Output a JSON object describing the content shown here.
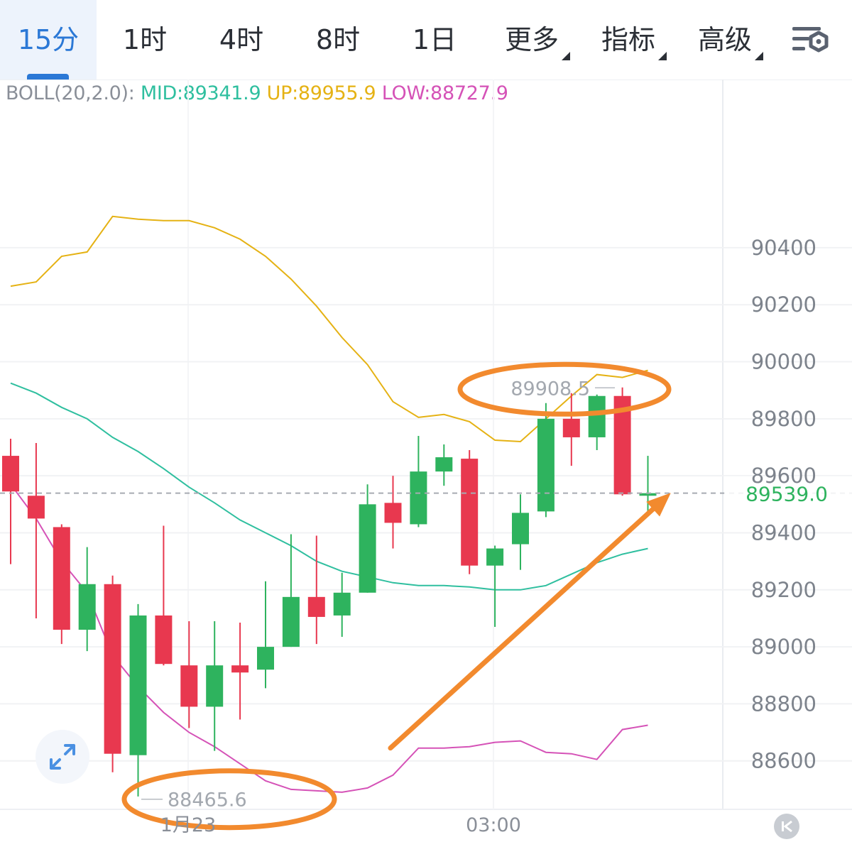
{
  "tabs": [
    {
      "label": "15分",
      "active": true
    },
    {
      "label": "1时"
    },
    {
      "label": "4时"
    },
    {
      "label": "8时"
    },
    {
      "label": "1日"
    },
    {
      "label": "更多",
      "dropdown": true
    },
    {
      "label": "指标",
      "dropdown": true
    },
    {
      "label": "高级",
      "dropdown": true
    }
  ],
  "settings_icon": "chart-settings-icon",
  "boll": {
    "label": "BOLL(20,2.0):",
    "mid": "MID:89341.9",
    "up": "UP:89955.9",
    "low": "LOW:88727.9"
  },
  "colors": {
    "up_candle": "#2eb35e",
    "down_candle": "#e8384f",
    "mid_line": "#2fbf9f",
    "upper_band": "#e5b214",
    "lower_band": "#d552b7",
    "annotation": "#f28a2e",
    "active_tab": "#2b78d6",
    "current_price": "#2eb35e"
  },
  "chart_data": {
    "type": "candlestick",
    "y_ticks": [
      "90400",
      "90200",
      "90000",
      "89800",
      "89600",
      "89400",
      "89200",
      "89000",
      "88800",
      "88600"
    ],
    "ylim": [
      88430,
      90990
    ],
    "x_labels": [
      "1月23",
      "03:00"
    ],
    "current_price": "89539.0",
    "current_price_value": 89539.0,
    "high_marker": {
      "label": "89908.5",
      "value": 89908.5
    },
    "low_marker": {
      "label": "88465.6",
      "value": 88465.6
    },
    "candles": [
      {
        "x": 0,
        "open": 89670,
        "high": 89730,
        "low": 89290,
        "close": 89545
      },
      {
        "x": 1,
        "open": 89530,
        "high": 89715,
        "low": 89100,
        "close": 89450
      },
      {
        "x": 2,
        "open": 89420,
        "high": 89430,
        "low": 89010,
        "close": 89060
      },
      {
        "x": 3,
        "open": 89060,
        "high": 89350,
        "low": 88985,
        "close": 89220
      },
      {
        "x": 4,
        "open": 89220,
        "high": 89250,
        "low": 88560,
        "close": 88625
      },
      {
        "x": 5,
        "open": 88620,
        "high": 89150,
        "low": 88475,
        "close": 89110
      },
      {
        "x": 6,
        "open": 89110,
        "high": 89425,
        "low": 88935,
        "close": 88940
      },
      {
        "x": 7,
        "open": 88935,
        "high": 89090,
        "low": 88715,
        "close": 88790
      },
      {
        "x": 8,
        "open": 88790,
        "high": 89090,
        "low": 88635,
        "close": 88935
      },
      {
        "x": 9,
        "open": 88935,
        "high": 89085,
        "low": 88745,
        "close": 88910
      },
      {
        "x": 10,
        "open": 88920,
        "high": 89230,
        "low": 88855,
        "close": 89000
      },
      {
        "x": 11,
        "open": 89000,
        "high": 89395,
        "low": 89000,
        "close": 89175
      },
      {
        "x": 12,
        "open": 89175,
        "high": 89390,
        "low": 89010,
        "close": 89105
      },
      {
        "x": 13,
        "open": 89110,
        "high": 89260,
        "low": 89035,
        "close": 89190
      },
      {
        "x": 14,
        "open": 89190,
        "high": 89570,
        "low": 89190,
        "close": 89500
      },
      {
        "x": 15,
        "open": 89505,
        "high": 89600,
        "low": 89345,
        "close": 89435
      },
      {
        "x": 16,
        "open": 89430,
        "high": 89740,
        "low": 89420,
        "close": 89615
      },
      {
        "x": 17,
        "open": 89615,
        "high": 89710,
        "low": 89565,
        "close": 89665
      },
      {
        "x": 18,
        "open": 89660,
        "high": 89690,
        "low": 89255,
        "close": 89285
      },
      {
        "x": 19,
        "open": 89285,
        "high": 89355,
        "low": 89070,
        "close": 89345
      },
      {
        "x": 20,
        "open": 89360,
        "high": 89535,
        "low": 89270,
        "close": 89470
      },
      {
        "x": 21,
        "open": 89475,
        "high": 89855,
        "low": 89455,
        "close": 89800
      },
      {
        "x": 22,
        "open": 89800,
        "high": 89890,
        "low": 89635,
        "close": 89735
      },
      {
        "x": 23,
        "open": 89735,
        "high": 89885,
        "low": 89690,
        "close": 89880
      },
      {
        "x": 24,
        "open": 89880,
        "high": 89910,
        "low": 89530,
        "close": 89535
      },
      {
        "x": 25,
        "open": 89530,
        "high": 89670,
        "low": 89460,
        "close": 89539
      }
    ],
    "mid_band": [
      89925,
      89890,
      89840,
      89800,
      89735,
      89685,
      89625,
      89560,
      89505,
      89445,
      89400,
      89355,
      89300,
      89265,
      89245,
      89225,
      89215,
      89215,
      89210,
      89200,
      89200,
      89215,
      89255,
      89295,
      89325,
      89345
    ],
    "upper_band": [
      90265,
      90280,
      90370,
      90385,
      90510,
      90500,
      90495,
      90495,
      90470,
      90430,
      90370,
      90290,
      90195,
      90085,
      89990,
      89860,
      89805,
      89815,
      89790,
      89725,
      89720,
      89800,
      89880,
      89955,
      89945,
      89970
    ],
    "lower_band": [
      89570,
      89450,
      89300,
      89190,
      88970,
      88860,
      88770,
      88700,
      88650,
      88590,
      88530,
      88500,
      88495,
      88490,
      88505,
      88550,
      88645,
      88645,
      88650,
      88665,
      88670,
      88630,
      88625,
      88605,
      88710,
      88725
    ],
    "annotations": [
      {
        "type": "ellipse",
        "around": "high_marker"
      },
      {
        "type": "ellipse",
        "around": "low_marker"
      },
      {
        "type": "arrow",
        "from": [
          14.9,
          88645
        ],
        "to": [
          25.9,
          89540
        ]
      }
    ]
  }
}
